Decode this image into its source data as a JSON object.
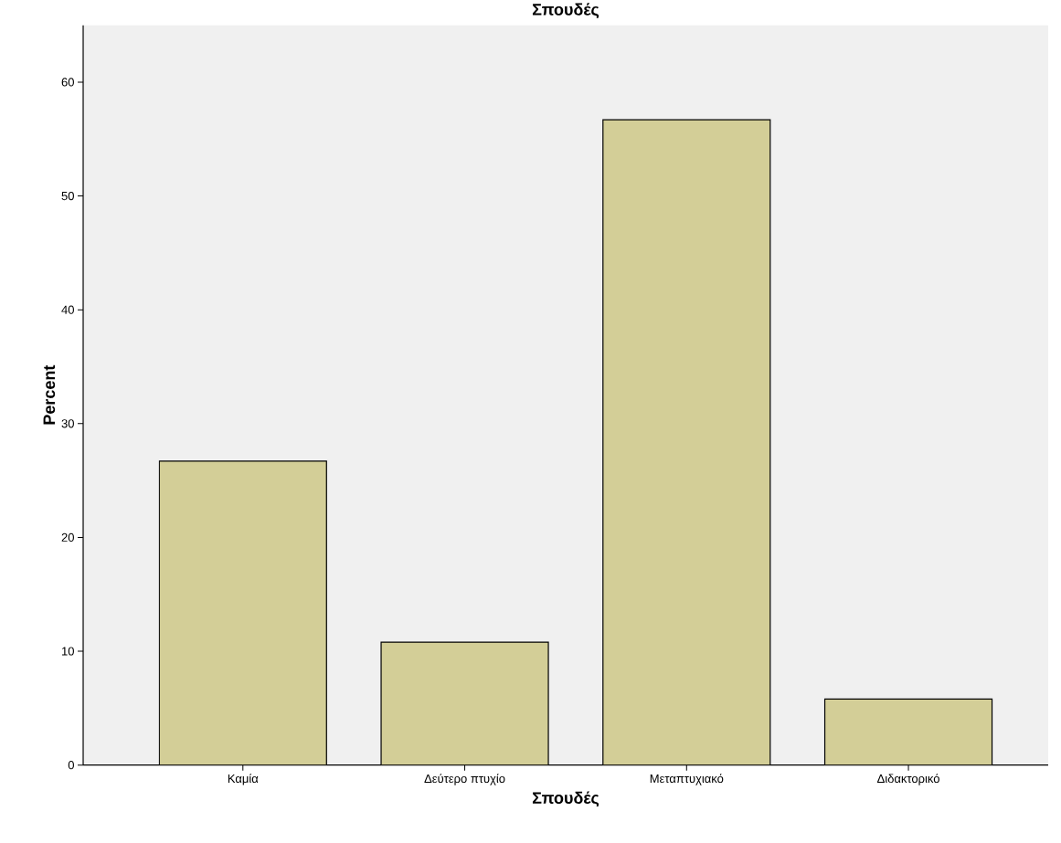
{
  "chart_data": {
    "type": "bar",
    "title": "Σπουδές",
    "xlabel": "Σπουδές",
    "ylabel": "Percent",
    "categories": [
      "Καμία",
      "Δεύτερο πτυχίο",
      "Μεταπτυχιακό",
      "Διδακτορικό"
    ],
    "values": [
      26.7,
      10.8,
      56.7,
      5.8
    ],
    "color": "#d3ce97",
    "ylim": [
      0,
      65
    ],
    "yticks": [
      0,
      10,
      20,
      30,
      40,
      50,
      60
    ],
    "grid": false
  }
}
